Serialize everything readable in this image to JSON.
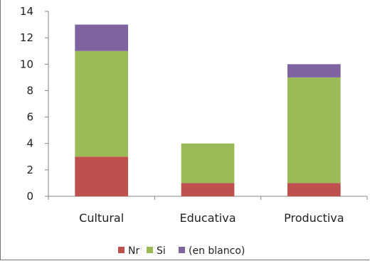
{
  "chart_data": {
    "type": "bar",
    "stacked": true,
    "categories": [
      "Cultural",
      "Educativa",
      "Productiva"
    ],
    "series": [
      {
        "name": "Nr",
        "values": [
          3,
          1,
          1
        ],
        "color": "#C0504D"
      },
      {
        "name": "Si",
        "values": [
          8,
          3,
          8
        ],
        "color": "#9BBB59"
      },
      {
        "name": "(en blanco)",
        "values": [
          2,
          0,
          1
        ],
        "color": "#8064A2"
      }
    ],
    "title": "",
    "xlabel": "",
    "ylabel": "",
    "ylim": [
      0,
      14
    ],
    "yticks": [
      "0",
      "2",
      "4",
      "6",
      "8",
      "10",
      "12",
      "14"
    ],
    "grid": false,
    "legend_position": "bottom"
  }
}
